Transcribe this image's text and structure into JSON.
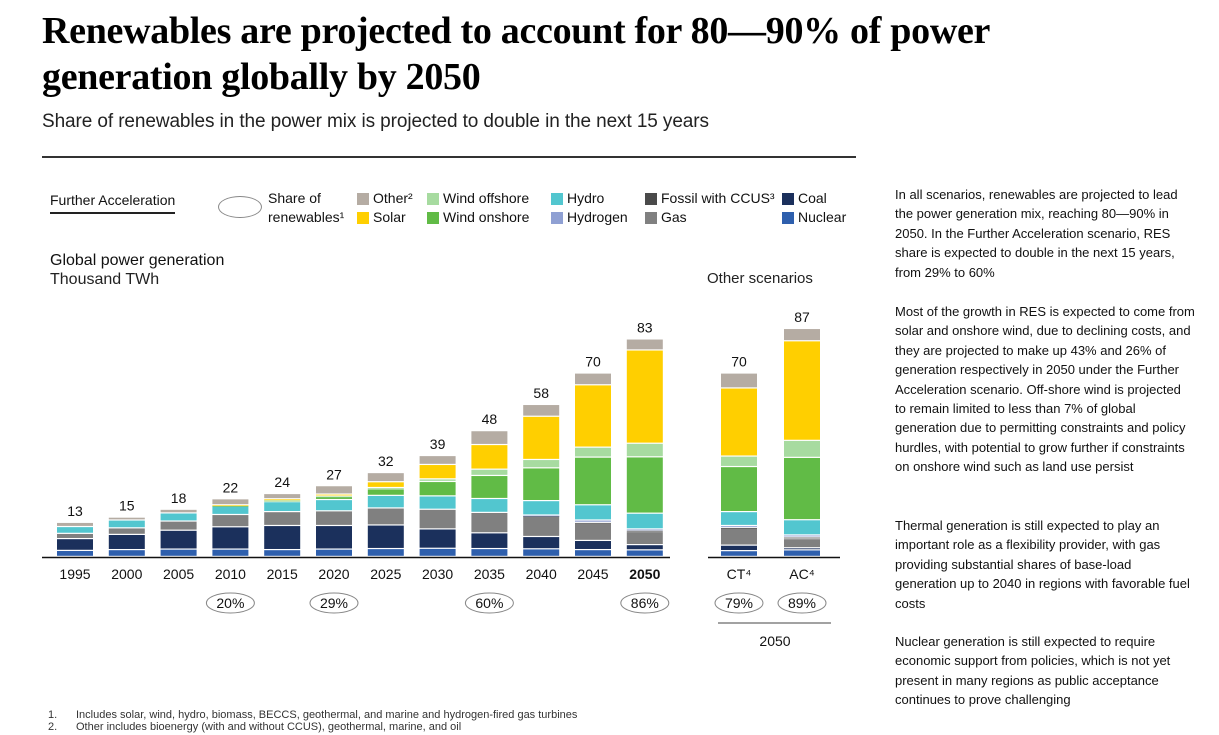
{
  "header": {
    "title": "Renewables are projected to account for 80—90% of power generation globally by 2050",
    "subtitle": "Share of renewables in the power mix is projected to double in the next 15 years"
  },
  "controls": {
    "scenario_tab": "Further Acceleration",
    "share_label_line1": "Share of",
    "share_label_line2": "renewables¹"
  },
  "legend": [
    {
      "key": "other",
      "label": "Other²",
      "color": "#b5aca3"
    },
    {
      "key": "solar",
      "label": "Solar",
      "color": "#ffcf00"
    },
    {
      "key": "wind_offshore",
      "label": "Wind offshore",
      "color": "#a7dba0"
    },
    {
      "key": "wind_onshore",
      "label": "Wind onshore",
      "color": "#61bb46"
    },
    {
      "key": "hydro",
      "label": "Hydro",
      "color": "#52c6cf"
    },
    {
      "key": "hydrogen",
      "label": "Hydrogen",
      "color": "#8fa0d3"
    },
    {
      "key": "fossil_ccus",
      "label": "Fossil with CCUS³",
      "color": "#4a4a4a"
    },
    {
      "key": "gas",
      "label": "Gas",
      "color": "#808080"
    },
    {
      "key": "coal",
      "label": "Coal",
      "color": "#1b305c"
    },
    {
      "key": "nuclear",
      "label": "Nuclear",
      "color": "#2e5fad"
    }
  ],
  "chart_data": {
    "type": "bar",
    "stacked": true,
    "title": "Global power generation",
    "ylabel": "Thousand TWh",
    "ylim": [
      0,
      90
    ],
    "grid": false,
    "stack_order_bottom_to_top": [
      "nuclear",
      "coal",
      "gas",
      "fossil_ccus",
      "hydrogen",
      "hydro",
      "wind_onshore",
      "wind_offshore",
      "solar",
      "other"
    ],
    "groups": [
      {
        "name": "Further Acceleration",
        "categories": [
          "1995",
          "2000",
          "2005",
          "2010",
          "2015",
          "2020",
          "2025",
          "2030",
          "2035",
          "2040",
          "2045",
          "2050"
        ],
        "bold_category": "2050",
        "totals": [
          13,
          15,
          18,
          22,
          24,
          27,
          32,
          39,
          48,
          58,
          70,
          83
        ],
        "renewable_share": [
          "",
          "",
          "",
          "20%",
          "",
          "29%",
          "",
          "",
          "60%",
          "",
          "",
          "86%"
        ],
        "series": [
          {
            "name": "Nuclear",
            "values": [
              2.3,
              2.6,
              2.8,
              2.8,
              2.6,
              2.8,
              3.0,
              3.1,
              3.0,
              2.9,
              2.6,
              2.5
            ]
          },
          {
            "name": "Coal",
            "values": [
              4.5,
              5.8,
              7.2,
              8.5,
              9.2,
              9.0,
              9.0,
              7.4,
              6.0,
              4.7,
              3.5,
              2.0
            ]
          },
          {
            "name": "Gas",
            "values": [
              2.0,
              2.5,
              3.5,
              4.7,
              5.3,
              5.6,
              6.5,
              7.5,
              7.8,
              7.8,
              6.5,
              5.0
            ]
          },
          {
            "name": "Fossil with CCUS³",
            "values": [
              0,
              0,
              0,
              0,
              0,
              0,
              0,
              0,
              0,
              0.2,
              0.4,
              0.5
            ]
          },
          {
            "name": "Hydrogen",
            "values": [
              0,
              0,
              0,
              0,
              0,
              0,
              0,
              0,
              0,
              0.2,
              0.9,
              0.5
            ]
          },
          {
            "name": "Hydro",
            "values": [
              2.6,
              3.0,
              3.1,
              3.4,
              3.8,
              4.3,
              4.8,
              5.1,
              5.3,
              5.5,
              5.8,
              6.0
            ]
          },
          {
            "name": "Wind onshore",
            "values": [
              0,
              0,
              0,
              0.2,
              0.6,
              1.2,
              2.5,
              5.5,
              8.8,
              12.5,
              18.2,
              21.5
            ]
          },
          {
            "name": "Wind offshore",
            "values": [
              0,
              0,
              0,
              0,
              0.1,
              0.2,
              0.5,
              1.0,
              2.4,
              3.2,
              3.8,
              5.2
            ]
          },
          {
            "name": "Solar",
            "values": [
              0,
              0,
              0,
              0.1,
              0.4,
              0.7,
              2.2,
              5.5,
              9.4,
              16.5,
              23.8,
              35.6
            ]
          },
          {
            "name": "Other²",
            "values": [
              1.6,
              1.1,
              1.4,
              2.3,
              2.0,
              3.2,
              3.5,
              3.4,
              5.3,
              4.5,
              4.5,
              4.2
            ]
          }
        ]
      },
      {
        "name": "Other scenarios",
        "categories": [
          "CT⁴",
          "AC⁴"
        ],
        "totals": [
          70,
          87
        ],
        "renewable_share": [
          "79%",
          "89%"
        ],
        "footer_label": "2050",
        "series": [
          {
            "name": "Nuclear",
            "values": [
              2.2,
              2.5
            ]
          },
          {
            "name": "Coal",
            "values": [
              2.1,
              0.8
            ]
          },
          {
            "name": "Gas",
            "values": [
              6.5,
              3.5
            ]
          },
          {
            "name": "Fossil with CCUS³",
            "values": [
              0.3,
              0.6
            ]
          },
          {
            "name": "Hydrogen",
            "values": [
              0.7,
              0.8
            ]
          },
          {
            "name": "Hydro",
            "values": [
              5.3,
              5.8
            ]
          },
          {
            "name": "Wind onshore",
            "values": [
              17.2,
              23.8
            ]
          },
          {
            "name": "Wind offshore",
            "values": [
              4.0,
              6.5
            ]
          },
          {
            "name": "Solar",
            "values": [
              26.0,
              38.0
            ]
          },
          {
            "name": "Other²",
            "values": [
              5.7,
              4.7
            ]
          }
        ]
      }
    ]
  },
  "labels": {
    "chart_title": "Global power generation",
    "chart_units": "Thousand TWh",
    "other_scenarios": "Other scenarios"
  },
  "side_text": [
    "In all scenarios, renewables are projected to lead the power generation mix, reaching 80—90% in 2050. In the Further Acceleration scenario, RES share is expected to double in the next 15 years, from 29% to 60%",
    "Most of the growth in RES is expected to come from solar and onshore wind, due to declining costs, and they are projected to make up 43% and 26% of generation respectively in 2050 under the Further Acceleration scenario. Off-shore wind is projected to remain limited to less than 7% of global generation due to permitting constraints and policy hurdles, with potential to grow further if constraints on onshore wind such as land use persist",
    "Thermal generation is still expected to play an important role as a flexibility provider, with gas providing substantial shares of base-load generation up to 2040 in regions with favorable fuel costs",
    "Nuclear generation is still expected to require economic support from policies, which is not yet present in many regions as public acceptance continues to prove challenging"
  ],
  "footnotes": [
    {
      "num": "1.",
      "text": "Includes solar, wind, hydro, biomass, BECCS, geothermal, and marine and hydrogen-fired gas turbines"
    },
    {
      "num": "2.",
      "text": "Other includes bioenergy (with and without CCUS), geothermal, marine, and oil"
    }
  ]
}
